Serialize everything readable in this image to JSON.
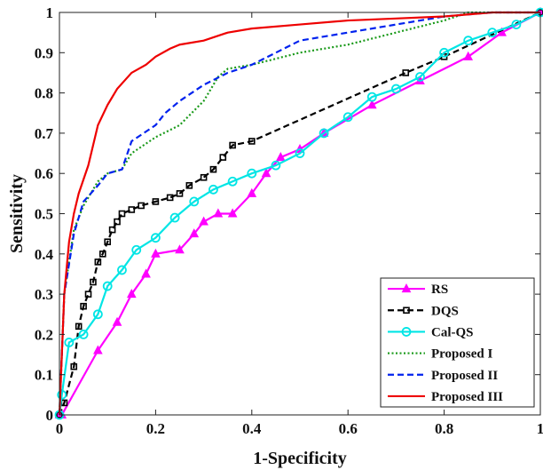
{
  "chart_data": {
    "type": "line",
    "xlabel": "1-Specificity",
    "ylabel": "Sensitivity",
    "xlim": [
      0,
      1
    ],
    "ylim": [
      0,
      1
    ],
    "x_ticks": [
      "0",
      "0.2",
      "0.4",
      "0.6",
      "0.8",
      "1"
    ],
    "y_ticks": [
      "0",
      "0.1",
      "0.2",
      "0.3",
      "0.4",
      "0.5",
      "0.6",
      "0.7",
      "0.8",
      "0.9",
      "1"
    ],
    "grid": false,
    "legend_position": "bottom-right",
    "series": [
      {
        "name": "RS",
        "color": "#ff00ff",
        "dash": "solid",
        "marker": "triangle",
        "x": [
          0,
          0.005,
          0.08,
          0.12,
          0.15,
          0.18,
          0.2,
          0.25,
          0.28,
          0.3,
          0.33,
          0.36,
          0.4,
          0.43,
          0.46,
          0.5,
          0.55,
          0.65,
          0.75,
          0.85,
          0.92,
          1
        ],
        "y": [
          0,
          0,
          0.16,
          0.23,
          0.3,
          0.35,
          0.4,
          0.41,
          0.45,
          0.48,
          0.5,
          0.5,
          0.55,
          0.6,
          0.64,
          0.66,
          0.7,
          0.77,
          0.83,
          0.89,
          0.95,
          1
        ]
      },
      {
        "name": "DQS",
        "color": "#000000",
        "dash": "dash",
        "marker": "square",
        "x": [
          0,
          0.01,
          0.03,
          0.04,
          0.05,
          0.06,
          0.07,
          0.08,
          0.09,
          0.1,
          0.11,
          0.12,
          0.13,
          0.15,
          0.17,
          0.2,
          0.23,
          0.25,
          0.27,
          0.3,
          0.32,
          0.34,
          0.36,
          0.4,
          0.72,
          0.8,
          1
        ],
        "y": [
          0,
          0.03,
          0.12,
          0.22,
          0.27,
          0.3,
          0.33,
          0.38,
          0.4,
          0.43,
          0.46,
          0.48,
          0.5,
          0.51,
          0.52,
          0.53,
          0.54,
          0.55,
          0.57,
          0.59,
          0.61,
          0.64,
          0.67,
          0.68,
          0.85,
          0.89,
          1
        ]
      },
      {
        "name": "Cal-QS",
        "color": "#00e5e5",
        "dash": "solid",
        "marker": "circle",
        "x": [
          0,
          0.005,
          0.02,
          0.05,
          0.08,
          0.1,
          0.13,
          0.16,
          0.2,
          0.24,
          0.28,
          0.32,
          0.36,
          0.4,
          0.45,
          0.5,
          0.55,
          0.6,
          0.65,
          0.7,
          0.75,
          0.8,
          0.85,
          0.9,
          0.95,
          1
        ],
        "y": [
          0,
          0.05,
          0.18,
          0.2,
          0.25,
          0.32,
          0.36,
          0.41,
          0.44,
          0.49,
          0.53,
          0.56,
          0.58,
          0.6,
          0.62,
          0.65,
          0.7,
          0.74,
          0.79,
          0.81,
          0.84,
          0.9,
          0.93,
          0.95,
          0.97,
          1
        ]
      },
      {
        "name": "Proposed I",
        "color": "#1a9a1a",
        "dash": "dot",
        "marker": "none",
        "x": [
          0,
          0.01,
          0.03,
          0.05,
          0.08,
          0.1,
          0.13,
          0.15,
          0.2,
          0.25,
          0.3,
          0.33,
          0.35,
          0.4,
          0.5,
          0.6,
          0.7,
          0.8,
          0.85,
          1
        ],
        "y": [
          0,
          0.3,
          0.46,
          0.52,
          0.58,
          0.6,
          0.61,
          0.65,
          0.69,
          0.72,
          0.78,
          0.84,
          0.86,
          0.87,
          0.9,
          0.92,
          0.95,
          0.98,
          1,
          1
        ]
      },
      {
        "name": "Proposed II",
        "color": "#0022ee",
        "dash": "dash",
        "marker": "none",
        "x": [
          0,
          0.01,
          0.03,
          0.05,
          0.08,
          0.1,
          0.13,
          0.15,
          0.2,
          0.22,
          0.25,
          0.3,
          0.35,
          0.4,
          0.45,
          0.5,
          0.6,
          0.7,
          0.8,
          0.9,
          1
        ],
        "y": [
          0,
          0.3,
          0.45,
          0.53,
          0.57,
          0.6,
          0.61,
          0.68,
          0.72,
          0.75,
          0.78,
          0.82,
          0.85,
          0.87,
          0.9,
          0.93,
          0.95,
          0.97,
          0.99,
          1,
          1
        ]
      },
      {
        "name": "Proposed III",
        "color": "#ee0000",
        "dash": "solid",
        "marker": "none",
        "x": [
          0,
          0.01,
          0.02,
          0.03,
          0.04,
          0.06,
          0.08,
          0.1,
          0.12,
          0.15,
          0.18,
          0.2,
          0.23,
          0.25,
          0.3,
          0.35,
          0.4,
          0.5,
          0.6,
          0.7,
          0.8,
          0.9,
          1
        ],
        "y": [
          0,
          0.3,
          0.43,
          0.5,
          0.55,
          0.62,
          0.72,
          0.77,
          0.81,
          0.85,
          0.87,
          0.89,
          0.91,
          0.92,
          0.93,
          0.95,
          0.96,
          0.97,
          0.98,
          0.985,
          0.99,
          1,
          1
        ]
      }
    ]
  }
}
